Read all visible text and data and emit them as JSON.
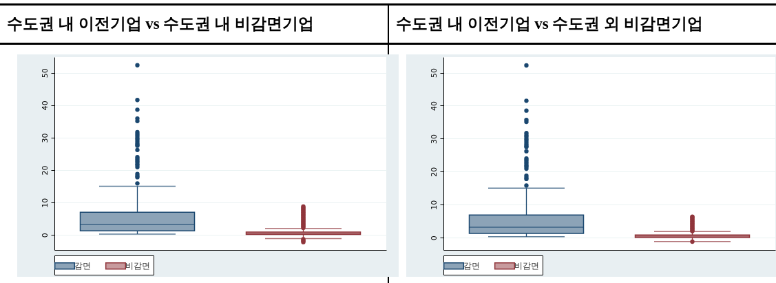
{
  "chart_data": [
    {
      "type": "box",
      "title": "수도권 내 이전기업 vs 수도권 내 비감면기업",
      "categories": [
        null,
        null
      ],
      "series": [
        {
          "name": "감면",
          "color": "#1a476f",
          "boxes": [
            {
              "low": 0.3,
              "q1": 1.3,
              "median": 3.2,
              "q3": 7.0,
              "high": 15.0,
              "outliers": [
                15.9,
                17.8,
                18.2,
                18.8,
                20.9,
                21.5,
                21.9,
                22.5,
                23.0,
                23.5,
                24.0,
                26.2,
                27.5,
                27.8,
                28.3,
                28.9,
                29.5,
                30.0,
                30.6,
                31.1,
                31.7,
                35.1,
                35.9,
                38.6,
                41.6,
                52.3
              ]
            },
            null
          ]
        },
        {
          "name": "비감면",
          "color": "#90353b",
          "boxes": [
            null,
            {
              "low": -1.1,
              "q1": 0.15,
              "median": 0.5,
              "q3": 0.9,
              "high": 2.05,
              "outliers": [
                2.2,
                2.5,
                2.8,
                3.1,
                3.4,
                3.7,
                4.0,
                4.3,
                4.6,
                4.9,
                5.2,
                5.5,
                5.8,
                6.1,
                6.4,
                6.7,
                7.0,
                7.3,
                7.6,
                7.9,
                8.2,
                8.5,
                8.8,
                -1.3,
                -1.6,
                -1.9,
                -2.2
              ]
            }
          ]
        }
      ],
      "ylim": [
        -4.6,
        54.8
      ],
      "yticks": [
        0,
        10,
        20,
        30,
        40,
        50
      ],
      "grid": "y",
      "legend": "bottom"
    },
    {
      "type": "box",
      "title": "수도권 내 이전기업 vs 수도권 외 비감면기업",
      "categories": [
        null,
        null
      ],
      "series": [
        {
          "name": "감면",
          "color": "#1a476f",
          "boxes": [
            {
              "low": 0.3,
              "q1": 1.3,
              "median": 3.2,
              "q3": 6.9,
              "high": 15.0,
              "outliers": [
                15.8,
                17.8,
                18.2,
                18.8,
                20.9,
                21.5,
                21.9,
                22.5,
                23.0,
                23.5,
                24.0,
                26.2,
                27.5,
                27.8,
                28.3,
                28.9,
                29.5,
                30.0,
                30.6,
                31.1,
                31.7,
                35.1,
                35.7,
                38.5,
                41.5,
                52.2
              ]
            },
            null
          ]
        },
        {
          "name": "비감면",
          "color": "#90353b",
          "boxes": [
            null,
            {
              "low": -1.15,
              "q1": 0.05,
              "median": 0.45,
              "q3": 0.85,
              "high": 1.9,
              "outliers": [
                2.0,
                2.3,
                2.6,
                2.9,
                3.2,
                3.5,
                3.8,
                4.1,
                4.4,
                4.7,
                5.0,
                5.3,
                5.6,
                5.9,
                6.2,
                6.4,
                -1.2
              ]
            }
          ]
        }
      ],
      "ylim": [
        -3.7,
        54.7
      ],
      "yticks": [
        0,
        10,
        20,
        30,
        40,
        50
      ],
      "grid": "y",
      "legend": "bottom"
    }
  ]
}
